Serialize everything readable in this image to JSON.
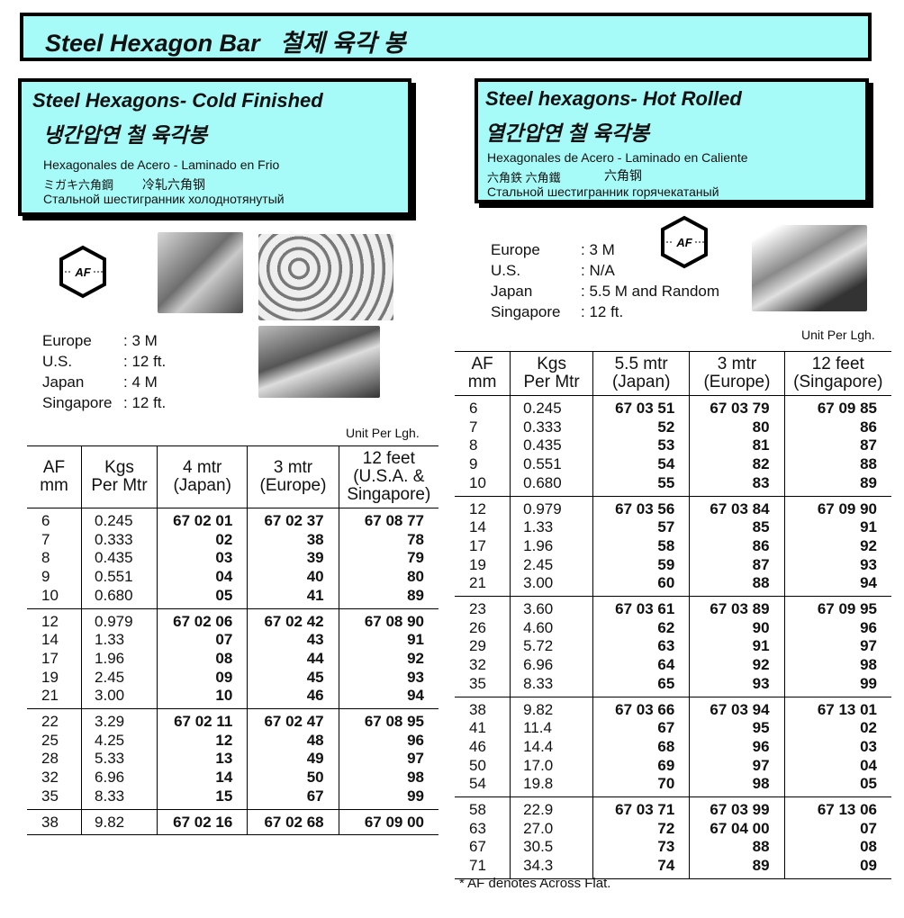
{
  "title": "Steel Hexagon Bar   철제 육각 봉",
  "cold": {
    "heading": "Steel Hexagons- Cold Finished",
    "korean": "냉간압연 철 육각봉",
    "spanish": "Hexagonales de Acero - Laminado en Frio",
    "japanese": "ミガキ六角鋼",
    "chinese": "冷轧六角钢",
    "russian": "Стальной шестигранник холоднотянутый",
    "af_icon_label": "AF",
    "specs": [
      {
        "region": "Europe",
        "value": ": 3 M"
      },
      {
        "region": "U.S.",
        "value": ": 12 ft."
      },
      {
        "region": "Japan",
        "value": ": 4 M"
      },
      {
        "region": "Singapore",
        "value": ": 12 ft."
      }
    ],
    "unit_note": "Unit Per Lgh.",
    "table": {
      "headers": [
        "AF\nmm",
        "Kgs\nPer Mtr",
        "4 mtr\n(Japan)",
        "3 mtr\n(Europe)",
        "12 feet\n(U.S.A. &\nSingapore)"
      ],
      "groups": [
        [
          [
            "6",
            "0.245",
            "67 02 01",
            "67 02 37",
            "67 08 77"
          ],
          [
            "7",
            "0.333",
            "02",
            "38",
            "78"
          ],
          [
            "8",
            "0.435",
            "03",
            "39",
            "79"
          ],
          [
            "9",
            "0.551",
            "04",
            "40",
            "80"
          ],
          [
            "10",
            "0.680",
            "05",
            "41",
            "89"
          ]
        ],
        [
          [
            "12",
            "0.979",
            "67 02 06",
            "67 02 42",
            "67 08 90"
          ],
          [
            "14",
            "1.33",
            "07",
            "43",
            "91"
          ],
          [
            "17",
            "1.96",
            "08",
            "44",
            "92"
          ],
          [
            "19",
            "2.45",
            "09",
            "45",
            "93"
          ],
          [
            "21",
            "3.00",
            "10",
            "46",
            "94"
          ]
        ],
        [
          [
            "22",
            "3.29",
            "67 02 11",
            "67 02 47",
            "67 08 95"
          ],
          [
            "25",
            "4.25",
            "12",
            "48",
            "96"
          ],
          [
            "28",
            "5.33",
            "13",
            "49",
            "97"
          ],
          [
            "32",
            "6.96",
            "14",
            "50",
            "98"
          ],
          [
            "35",
            "8.33",
            "15",
            "67",
            "99"
          ]
        ],
        [
          [
            "38",
            "9.82",
            "67 02 16",
            "67 02 68",
            "67 09 00"
          ]
        ]
      ]
    }
  },
  "hot": {
    "heading": "Steel hexagons- Hot Rolled",
    "korean": "열간압연 철 육각봉",
    "spanish": "Hexagonales de Acero - Laminado en Caliente",
    "japanese": "六角鉄 六角鐵",
    "chinese": "六角钢",
    "russian": "Стальной шестигранник горячекатаный",
    "af_icon_label": "AF",
    "specs": [
      {
        "region": "Europe",
        "value": ": 3 M"
      },
      {
        "region": "U.S.",
        "value": ": N/A"
      },
      {
        "region": "Japan",
        "value": ": 5.5 M and Random"
      },
      {
        "region": "Singapore",
        "value": ": 12 ft."
      }
    ],
    "unit_note": "Unit Per Lgh.",
    "table": {
      "headers": [
        "AF\nmm",
        "Kgs\nPer Mtr",
        "5.5 mtr\n(Japan)",
        "3 mtr\n(Europe)",
        "12 feet\n(Singapore)"
      ],
      "groups": [
        [
          [
            "6",
            "0.245",
            "67 03 51",
            "67 03 79",
            "67 09 85"
          ],
          [
            "7",
            "0.333",
            "52",
            "80",
            "86"
          ],
          [
            "8",
            "0.435",
            "53",
            "81",
            "87"
          ],
          [
            "9",
            "0.551",
            "54",
            "82",
            "88"
          ],
          [
            "10",
            "0.680",
            "55",
            "83",
            "89"
          ]
        ],
        [
          [
            "12",
            "0.979",
            "67 03 56",
            "67 03 84",
            "67 09 90"
          ],
          [
            "14",
            "1.33",
            "57",
            "85",
            "91"
          ],
          [
            "17",
            "1.96",
            "58",
            "86",
            "92"
          ],
          [
            "19",
            "2.45",
            "59",
            "87",
            "93"
          ],
          [
            "21",
            "3.00",
            "60",
            "88",
            "94"
          ]
        ],
        [
          [
            "23",
            "3.60",
            "67 03 61",
            "67 03 89",
            "67 09 95"
          ],
          [
            "26",
            "4.60",
            "62",
            "90",
            "96"
          ],
          [
            "29",
            "5.72",
            "63",
            "91",
            "97"
          ],
          [
            "32",
            "6.96",
            "64",
            "92",
            "98"
          ],
          [
            "35",
            "8.33",
            "65",
            "93",
            "99"
          ]
        ],
        [
          [
            "38",
            "9.82",
            "67 03 66",
            "67 03 94",
            "67 13 01"
          ],
          [
            "41",
            "11.4",
            "67",
            "95",
            "02"
          ],
          [
            "46",
            "14.4",
            "68",
            "96",
            "03"
          ],
          [
            "50",
            "17.0",
            "69",
            "97",
            "04"
          ],
          [
            "54",
            "19.8",
            "70",
            "98",
            "05"
          ]
        ],
        [
          [
            "58",
            "22.9",
            "67 03 71",
            "67 03 99",
            "67 13 06"
          ],
          [
            "63",
            "27.0",
            "72",
            "67 04 00",
            "07"
          ],
          [
            "67",
            "30.5",
            "73",
            "88",
            "08"
          ],
          [
            "71",
            "34.3",
            "74",
            "89",
            "09"
          ]
        ]
      ]
    },
    "footnote": "* AF denotes Across Flat."
  }
}
